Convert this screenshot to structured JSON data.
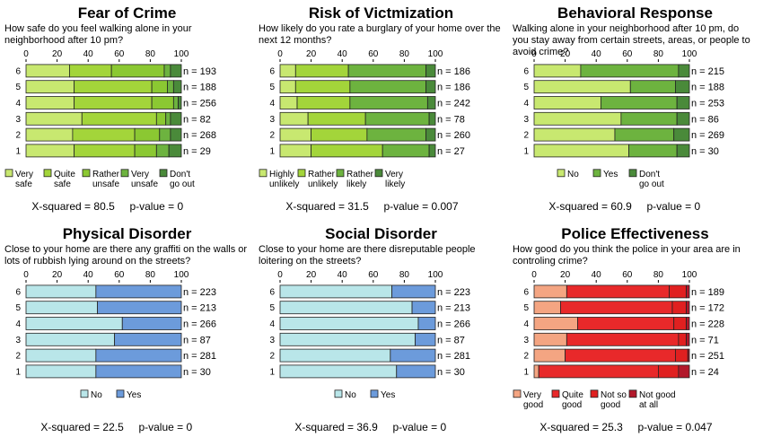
{
  "chart_data": [
    {
      "type": "bar",
      "stacked": true,
      "orientation": "horizontal",
      "title": "Fear of Crime",
      "question": "How safe do you feel walking alone in your neighborhood after 10 pm?",
      "xlim": [
        0,
        100
      ],
      "xticks": [
        "0",
        "20",
        "40",
        "60",
        "80",
        "100"
      ],
      "categories": [
        "6",
        "5",
        "4",
        "3",
        "2",
        "1"
      ],
      "n_labels": [
        "n = 193",
        "n = 188",
        "n = 256",
        "n = 82",
        "n = 268",
        "n = 29"
      ],
      "series": [
        {
          "name": "Very safe",
          "color": "#c8e870",
          "values": [
            28,
            31,
            31,
            36,
            30,
            31
          ]
        },
        {
          "name": "Quite safe",
          "color": "#a3d53a",
          "values": [
            27,
            50,
            50,
            48,
            40,
            39
          ]
        },
        {
          "name": "Rather unsafe",
          "color": "#8bc832",
          "values": [
            34,
            10,
            14,
            6,
            16,
            14
          ]
        },
        {
          "name": "Very unsafe",
          "color": "#6db33f",
          "values": [
            4,
            4,
            3,
            3,
            7,
            8
          ]
        },
        {
          "name": "Don't go out",
          "color": "#4a8a3a",
          "values": [
            7,
            5,
            2,
            7,
            7,
            8
          ]
        }
      ],
      "legend": [
        {
          "label": [
            "Very",
            "safe"
          ],
          "color": "#c8e870"
        },
        {
          "label": [
            "Quite",
            "safe"
          ],
          "color": "#a3d53a"
        },
        {
          "label": [
            "Rather",
            "unsafe"
          ],
          "color": "#8bc832"
        },
        {
          "label": [
            "Very",
            "unsafe"
          ],
          "color": "#6db33f"
        },
        {
          "label": [
            "Don't",
            "go out"
          ],
          "color": "#4a8a3a"
        }
      ],
      "x_squared_label": "X-squared =",
      "x_squared": "80.5",
      "p_label": "p-value =",
      "p_value": "0"
    },
    {
      "type": "bar",
      "stacked": true,
      "orientation": "horizontal",
      "title": "Risk of Victmization",
      "question": "How likely do you rate a burglary of your home over the next 12 months?",
      "xlim": [
        0,
        100
      ],
      "xticks": [
        "0",
        "20",
        "40",
        "60",
        "80",
        "100"
      ],
      "categories": [
        "6",
        "5",
        "4",
        "3",
        "2",
        "1"
      ],
      "n_labels": [
        "n = 186",
        "n = 186",
        "n = 242",
        "n = 78",
        "n = 260",
        "n = 27"
      ],
      "series": [
        {
          "name": "Highly unlikely",
          "color": "#c8e870",
          "values": [
            10,
            10,
            11,
            18,
            20,
            20
          ]
        },
        {
          "name": "Rather unlikely",
          "color": "#a3d53a",
          "values": [
            34,
            35,
            34,
            37,
            36,
            46
          ]
        },
        {
          "name": "Rather likely",
          "color": "#6db33f",
          "values": [
            50,
            49,
            50,
            41,
            38,
            30
          ]
        },
        {
          "name": "Very likely",
          "color": "#4a8a3a",
          "values": [
            6,
            6,
            5,
            4,
            6,
            4
          ]
        }
      ],
      "legend": [
        {
          "label": [
            "Highly",
            "unlikely"
          ],
          "color": "#c8e870"
        },
        {
          "label": [
            "Rather",
            "unlikely"
          ],
          "color": "#a3d53a"
        },
        {
          "label": [
            "Rather",
            "likely"
          ],
          "color": "#6db33f"
        },
        {
          "label": [
            "Very",
            "likely"
          ],
          "color": "#4a8a3a"
        }
      ],
      "x_squared_label": "X-squared =",
      "x_squared": "31.5",
      "p_label": "p-value =",
      "p_value": "0.007"
    },
    {
      "type": "bar",
      "stacked": true,
      "orientation": "horizontal",
      "title": "Behavioral Response",
      "question": "Walking alone in your neighborhood after 10 pm, do you stay away from certain streets, areas, or people to avoid crime?",
      "xlim": [
        0,
        100
      ],
      "xticks": [
        "0",
        "20",
        "40",
        "60",
        "80",
        "100"
      ],
      "categories": [
        "6",
        "5",
        "4",
        "3",
        "2",
        "1"
      ],
      "n_labels": [
        "n = 215",
        "n = 188",
        "n = 253",
        "n = 86",
        "n = 269",
        "n = 30"
      ],
      "series": [
        {
          "name": "No",
          "color": "#c8e870",
          "values": [
            30,
            62,
            43,
            56,
            52,
            61
          ]
        },
        {
          "name": "Yes",
          "color": "#6db33f",
          "values": [
            63,
            29,
            49,
            36,
            38,
            31
          ]
        },
        {
          "name": "Don't go out",
          "color": "#4a8a3a",
          "values": [
            7,
            9,
            8,
            8,
            10,
            8
          ]
        }
      ],
      "legend": [
        {
          "label": [
            "No"
          ],
          "color": "#c8e870"
        },
        {
          "label": [
            "Yes"
          ],
          "color": "#6db33f"
        },
        {
          "label": [
            "Don't",
            "go out"
          ],
          "color": "#4a8a3a"
        }
      ],
      "x_squared_label": "X-squared =",
      "x_squared": "60.9",
      "p_label": "p-value =",
      "p_value": "0"
    },
    {
      "type": "bar",
      "stacked": true,
      "orientation": "horizontal",
      "title": "Physical Disorder",
      "question": "Close to your home are there any graffiti on the walls or lots of rubbish lying around on the streets?",
      "xlim": [
        0,
        100
      ],
      "xticks": [
        "0",
        "20",
        "40",
        "60",
        "80",
        "100"
      ],
      "categories": [
        "6",
        "5",
        "4",
        "3",
        "2",
        "1"
      ],
      "n_labels": [
        "n = 223",
        "n = 213",
        "n = 266",
        "n = 87",
        "n = 281",
        "n = 30"
      ],
      "series": [
        {
          "name": "No",
          "color": "#b9e6e9",
          "values": [
            45,
            46,
            62,
            57,
            45,
            45
          ]
        },
        {
          "name": "Yes",
          "color": "#6c9bdb",
          "values": [
            55,
            54,
            38,
            43,
            55,
            55
          ]
        }
      ],
      "legend": [
        {
          "label": [
            "No"
          ],
          "color": "#b9e6e9"
        },
        {
          "label": [
            "Yes"
          ],
          "color": "#6c9bdb"
        }
      ],
      "x_squared_label": "X-squared =",
      "x_squared": "22.5",
      "p_label": "p-value =",
      "p_value": "0"
    },
    {
      "type": "bar",
      "stacked": true,
      "orientation": "horizontal",
      "title": "Social Disorder",
      "question": "Close to your home are there disreputable people loitering on the streets?",
      "xlim": [
        0,
        100
      ],
      "xticks": [
        "0",
        "20",
        "40",
        "60",
        "80",
        "100"
      ],
      "categories": [
        "6",
        "5",
        "4",
        "3",
        "2",
        "1"
      ],
      "n_labels": [
        "n = 223",
        "n = 213",
        "n = 266",
        "n = 87",
        "n = 281",
        "n = 30"
      ],
      "series": [
        {
          "name": "No",
          "color": "#b9e6e9",
          "values": [
            72,
            85,
            89,
            87,
            71,
            75
          ]
        },
        {
          "name": "Yes",
          "color": "#6c9bdb",
          "values": [
            28,
            15,
            11,
            13,
            29,
            25
          ]
        }
      ],
      "legend": [
        {
          "label": [
            "No"
          ],
          "color": "#b9e6e9"
        },
        {
          "label": [
            "Yes"
          ],
          "color": "#6c9bdb"
        }
      ],
      "x_squared_label": "X-squared =",
      "x_squared": "36.9",
      "p_label": "p-value =",
      "p_value": "0"
    },
    {
      "type": "bar",
      "stacked": true,
      "orientation": "horizontal",
      "title": "Police Effectiveness",
      "question": "How good do you think the police in your area are in controling crime?",
      "xlim": [
        0,
        100
      ],
      "xticks": [
        "0",
        "20",
        "40",
        "60",
        "80",
        "100"
      ],
      "categories": [
        "6",
        "5",
        "4",
        "3",
        "2",
        "1"
      ],
      "n_labels": [
        "n = 189",
        "n = 172",
        "n = 228",
        "n = 71",
        "n = 251",
        "n = 24"
      ],
      "series": [
        {
          "name": "Very good",
          "color": "#f4a582",
          "values": [
            21,
            17,
            28,
            21,
            20,
            3
          ]
        },
        {
          "name": "Quite good",
          "color": "#e8292a",
          "values": [
            66,
            72,
            62,
            72,
            71,
            77
          ]
        },
        {
          "name": "Not so good",
          "color": "#e02020",
          "values": [
            11,
            9,
            8,
            5,
            8,
            13
          ]
        },
        {
          "name": "Not good at all",
          "color": "#b2182b",
          "values": [
            2,
            2,
            2,
            2,
            1,
            7
          ]
        }
      ],
      "legend": [
        {
          "label": [
            "Very",
            "good"
          ],
          "color": "#f4a582"
        },
        {
          "label": [
            "Quite",
            "good"
          ],
          "color": "#e8292a"
        },
        {
          "label": [
            "Not so",
            "good"
          ],
          "color": "#e02020"
        },
        {
          "label": [
            "Not good",
            "at all"
          ],
          "color": "#b2182b"
        }
      ],
      "x_squared_label": "X-squared =",
      "x_squared": "25.3",
      "p_label": "p-value =",
      "p_value": "0.047"
    }
  ]
}
